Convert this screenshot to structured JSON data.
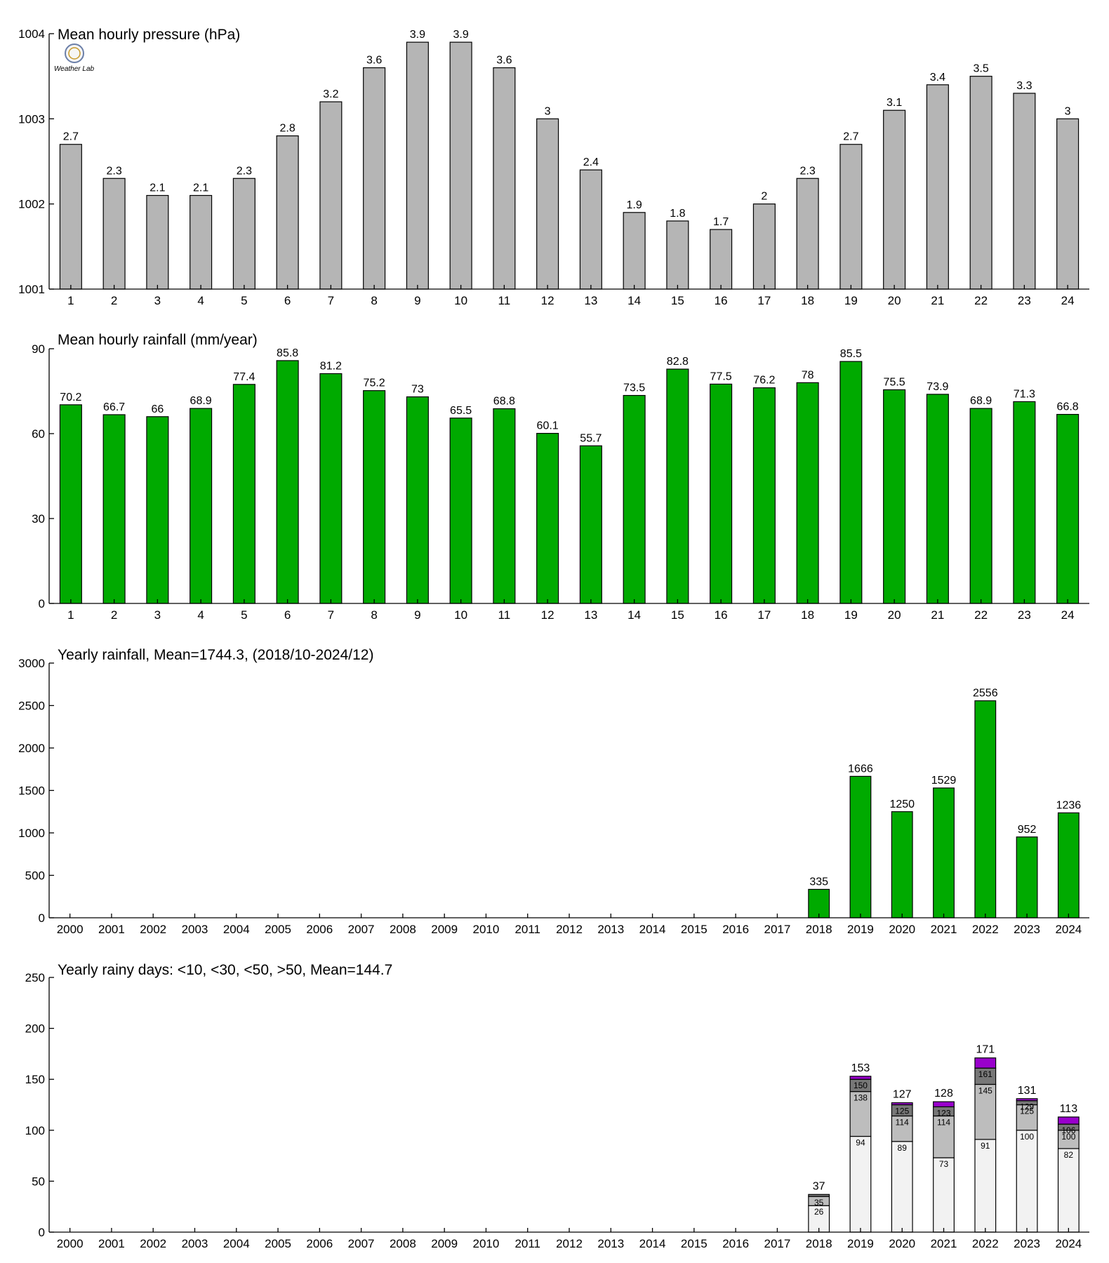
{
  "logo": {
    "name": "weather-lab-logo",
    "text": "Weather Lab"
  },
  "chart_data": [
    {
      "id": "pressure",
      "type": "bar",
      "title": "Mean hourly pressure (hPa)",
      "categories": [
        "1",
        "2",
        "3",
        "4",
        "5",
        "6",
        "7",
        "8",
        "9",
        "10",
        "11",
        "12",
        "13",
        "14",
        "15",
        "16",
        "17",
        "18",
        "19",
        "20",
        "21",
        "22",
        "23",
        "24"
      ],
      "values": [
        1002.7,
        1002.3,
        1002.1,
        1002.1,
        1002.3,
        1002.8,
        1003.2,
        1003.6,
        1003.9,
        1003.9,
        1003.6,
        1003.0,
        1002.4,
        1001.9,
        1001.8,
        1001.7,
        1002.0,
        1002.3,
        1002.7,
        1003.1,
        1003.4,
        1003.5,
        1003.3,
        1003.0
      ],
      "data_labels": [
        "2.7",
        "2.3",
        "2.1",
        "2.1",
        "2.3",
        "2.8",
        "3.2",
        "3.6",
        "3.9",
        "3.9",
        "3.6",
        "3",
        "2.4",
        "1.9",
        "1.8",
        "1.7",
        "2",
        "2.3",
        "2.7",
        "3.1",
        "3.4",
        "3.5",
        "3.3",
        "3"
      ],
      "ylim": [
        1001,
        1004
      ],
      "yticks": [
        "1001",
        "1002",
        "1003",
        "1004"
      ],
      "color": "#b5b5b5"
    },
    {
      "id": "hourly_rain",
      "type": "bar",
      "title": "Mean hourly rainfall (mm/year)",
      "categories": [
        "1",
        "2",
        "3",
        "4",
        "5",
        "6",
        "7",
        "8",
        "9",
        "10",
        "11",
        "12",
        "13",
        "14",
        "15",
        "16",
        "17",
        "18",
        "19",
        "20",
        "21",
        "22",
        "23",
        "24"
      ],
      "values": [
        70.2,
        66.7,
        66,
        68.9,
        77.4,
        85.8,
        81.2,
        75.2,
        73,
        65.5,
        68.8,
        60.1,
        55.7,
        73.5,
        82.8,
        77.5,
        76.2,
        78,
        85.5,
        75.5,
        73.9,
        68.9,
        71.3,
        66.8
      ],
      "data_labels": [
        "70.2",
        "66.7",
        "66",
        "68.9",
        "77.4",
        "85.8",
        "81.2",
        "75.2",
        "73",
        "65.5",
        "68.8",
        "60.1",
        "55.7",
        "73.5",
        "82.8",
        "77.5",
        "76.2",
        "78",
        "85.5",
        "75.5",
        "73.9",
        "68.9",
        "71.3",
        "66.8"
      ],
      "ylim": [
        0,
        90
      ],
      "yticks": [
        "0",
        "30",
        "60",
        "90"
      ],
      "color": "#00aa00"
    },
    {
      "id": "yearly_rain",
      "type": "bar",
      "title": "Yearly rainfall, Mean=1744.3, (2018/10-2024/12)",
      "categories": [
        "2000",
        "2001",
        "2002",
        "2003",
        "2004",
        "2005",
        "2006",
        "2007",
        "2008",
        "2009",
        "2010",
        "2011",
        "2012",
        "2013",
        "2014",
        "2015",
        "2016",
        "2017",
        "2018",
        "2019",
        "2020",
        "2021",
        "2022",
        "2023",
        "2024"
      ],
      "values": [
        null,
        null,
        null,
        null,
        null,
        null,
        null,
        null,
        null,
        null,
        null,
        null,
        null,
        null,
        null,
        null,
        null,
        null,
        335,
        1666,
        1250,
        1529,
        2556,
        952,
        1236
      ],
      "data_labels": [
        "",
        "",
        "",
        "",
        "",
        "",
        "",
        "",
        "",
        "",
        "",
        "",
        "",
        "",
        "",
        "",
        "",
        "",
        "335",
        "1666",
        "1250",
        "1529",
        "2556",
        "952",
        "1236"
      ],
      "ylim": [
        0,
        3000
      ],
      "yticks": [
        "0",
        "500",
        "1000",
        "1500",
        "2000",
        "2500",
        "3000"
      ],
      "color": "#00aa00"
    },
    {
      "id": "rainy_days",
      "type": "bar",
      "stacked": true,
      "title": "Yearly rainy days: <10, <30, <50, >50, Mean=144.7",
      "categories": [
        "2000",
        "2001",
        "2002",
        "2003",
        "2004",
        "2005",
        "2006",
        "2007",
        "2008",
        "2009",
        "2010",
        "2011",
        "2012",
        "2013",
        "2014",
        "2015",
        "2016",
        "2017",
        "2018",
        "2019",
        "2020",
        "2021",
        "2022",
        "2023",
        "2024"
      ],
      "cumulative": [
        {
          "values": [
            null,
            null,
            null,
            null,
            null,
            null,
            null,
            null,
            null,
            null,
            null,
            null,
            null,
            null,
            null,
            null,
            null,
            null,
            26,
            94,
            89,
            73,
            91,
            100,
            82
          ],
          "color": "#f2f2f2"
        },
        {
          "values": [
            null,
            null,
            null,
            null,
            null,
            null,
            null,
            null,
            null,
            null,
            null,
            null,
            null,
            null,
            null,
            null,
            null,
            null,
            35,
            138,
            114,
            114,
            145,
            125,
            100
          ],
          "color": "#bdbdbd"
        },
        {
          "values": [
            null,
            null,
            null,
            null,
            null,
            null,
            null,
            null,
            null,
            null,
            null,
            null,
            null,
            null,
            null,
            null,
            null,
            null,
            37,
            150,
            125,
            123,
            161,
            129,
            106
          ],
          "color": "#777777"
        },
        {
          "values": [
            null,
            null,
            null,
            null,
            null,
            null,
            null,
            null,
            null,
            null,
            null,
            null,
            null,
            null,
            null,
            null,
            null,
            null,
            37,
            153,
            127,
            128,
            171,
            131,
            113
          ],
          "color": "#9900cc"
        }
      ],
      "segment_labels": [
        [
          "",
          "",
          "",
          "",
          "",
          "",
          "",
          "",
          "",
          "",
          "",
          "",
          "",
          "",
          "",
          "",
          "",
          "",
          "26",
          "94",
          "89",
          "73",
          "91",
          "100",
          "82"
        ],
        [
          "",
          "",
          "",
          "",
          "",
          "",
          "",
          "",
          "",
          "",
          "",
          "",
          "",
          "",
          "",
          "",
          "",
          "",
          "35",
          "138",
          "114",
          "114",
          "145",
          "125",
          "100"
        ],
        [
          "",
          "",
          "",
          "",
          "",
          "",
          "",
          "",
          "",
          "",
          "",
          "",
          "",
          "",
          "",
          "",
          "",
          "",
          "",
          "150",
          "125",
          "123",
          "161",
          "129",
          "106"
        ]
      ],
      "total_labels": [
        "",
        "",
        "",
        "",
        "",
        "",
        "",
        "",
        "",
        "",
        "",
        "",
        "",
        "",
        "",
        "",
        "",
        "",
        "37",
        "153",
        "127",
        "128",
        "171",
        "131",
        "113"
      ],
      "ylim": [
        0,
        250
      ],
      "yticks": [
        "0",
        "50",
        "100",
        "150",
        "200",
        "250"
      ]
    }
  ]
}
